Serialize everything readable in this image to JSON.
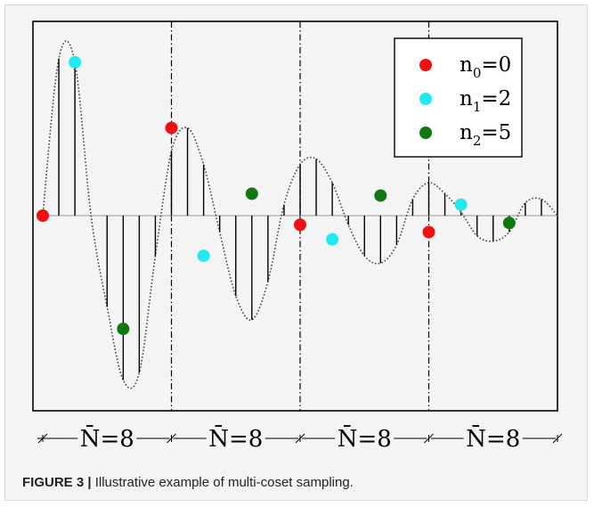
{
  "caption": {
    "label": "FIGURE 3 |",
    "text": "Illustrative example of multi-coset sampling."
  },
  "colors": {
    "red": "#ee1111",
    "cyan": "#22e8f0",
    "green": "#117711",
    "stem": "#000000",
    "curve": "#444444"
  },
  "chart_data": {
    "type": "scatter",
    "title": "",
    "xlabel": "",
    "ylabel": "",
    "grid": false,
    "legend_position": "top-right",
    "period_length": 8,
    "num_periods": 4,
    "segment_label": "N̄=8",
    "xlim": [
      0,
      32
    ],
    "ylim": [
      -1.0,
      1.0
    ],
    "samples_y": [
      0.0,
      0.86,
      0.84,
      0.0,
      -0.5,
      -0.9,
      -0.86,
      -0.22,
      0.35,
      0.48,
      0.28,
      -0.09,
      -0.44,
      -0.57,
      -0.36,
      0.06,
      0.28,
      0.31,
      0.18,
      -0.05,
      -0.22,
      -0.26,
      -0.16,
      0.09,
      0.18,
      0.12,
      0.02,
      -0.11,
      -0.14,
      -0.09,
      0.07,
      0.09,
      0.0
    ],
    "series": [
      {
        "name": "n0=0",
        "sub": "0",
        "value_label": "=0",
        "color": "#ee1111",
        "x": [
          0,
          8,
          16,
          24
        ],
        "y": [
          0.0,
          0.48,
          -0.05,
          -0.09
        ]
      },
      {
        "name": "n1=2",
        "sub": "1",
        "value_label": "=2",
        "color": "#22e8f0",
        "x": [
          2,
          10,
          18,
          26
        ],
        "y": [
          0.84,
          -0.22,
          -0.13,
          0.06
        ]
      },
      {
        "name": "n2=5",
        "sub": "2",
        "value_label": "=5",
        "color": "#117711",
        "x": [
          5,
          13,
          21,
          29
        ],
        "y": [
          -0.62,
          0.12,
          0.11,
          -0.04
        ]
      }
    ]
  }
}
